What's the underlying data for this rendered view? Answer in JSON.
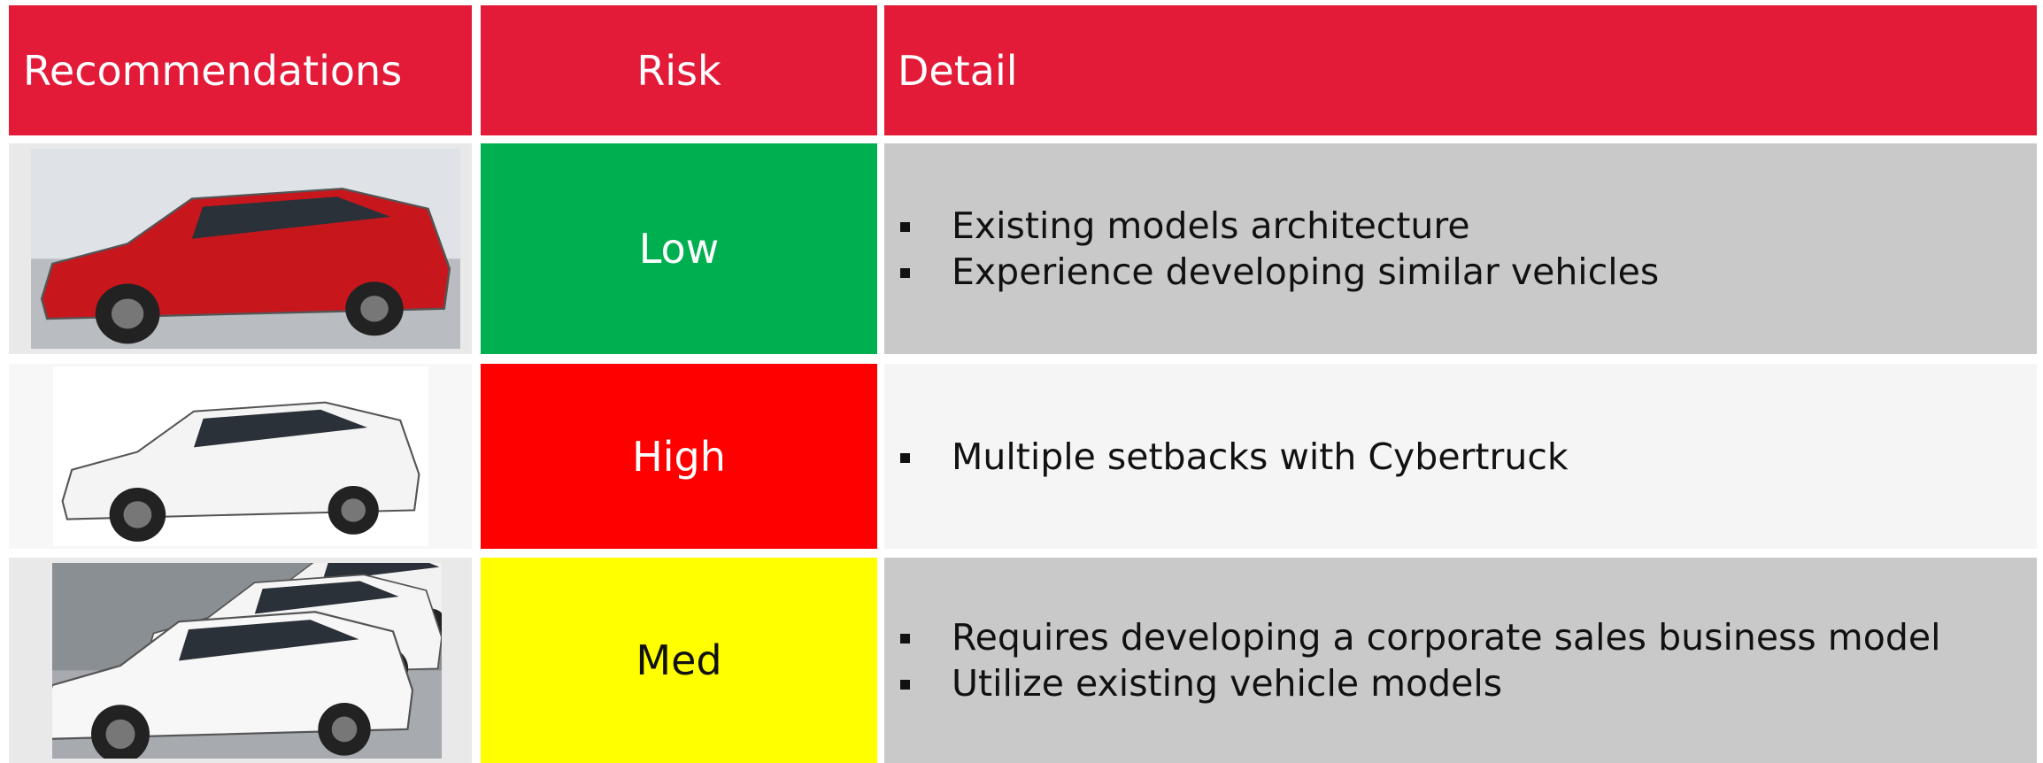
{
  "table": {
    "header": [
      "Recommendations",
      "Risk",
      "Detail"
    ],
    "rows": [
      {
        "risk": "Low",
        "color": "#00b050",
        "details": [
          "Existing models architecture",
          "Experience developing similar vehicles"
        ]
      },
      {
        "risk": "High",
        "color": "#ff0000",
        "details": [
          "Multiple setbacks with Cybertruck"
        ]
      },
      {
        "risk": "Med",
        "color": "#ffff00",
        "details": [
          "Requires developing a corporate sales business model",
          "Utilize existing vehicle models"
        ]
      }
    ]
  }
}
